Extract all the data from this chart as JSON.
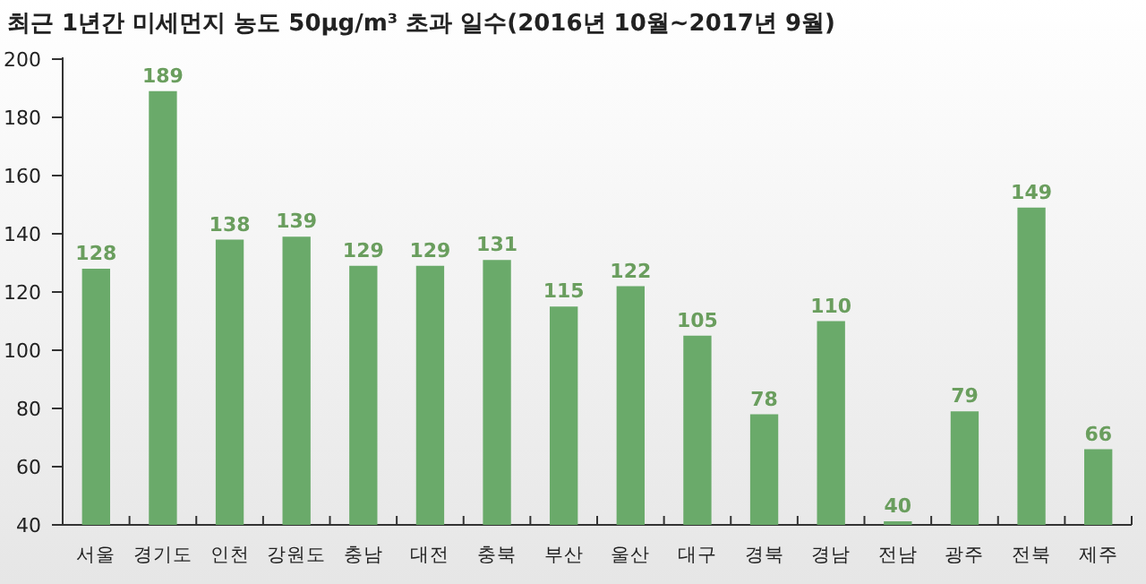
{
  "chart_data": {
    "type": "bar",
    "title": "최근 1년간 미세먼지 농도 50μg/m³ 초과 일수(2016년 10월~2017년 9월)",
    "categories": [
      "서울",
      "경기도",
      "인천",
      "강원도",
      "충남",
      "대전",
      "충북",
      "부산",
      "울산",
      "대구",
      "경북",
      "경남",
      "전남",
      "광주",
      "전북",
      "제주"
    ],
    "values": [
      128,
      189,
      138,
      139,
      129,
      129,
      131,
      115,
      122,
      105,
      78,
      110,
      40,
      79,
      149,
      66
    ],
    "color": "#6aaa6a",
    "ylim": [
      40,
      200
    ],
    "yticks": [
      40,
      60,
      80,
      100,
      120,
      140,
      160,
      180,
      200
    ],
    "data_labels": true,
    "grid": false
  }
}
